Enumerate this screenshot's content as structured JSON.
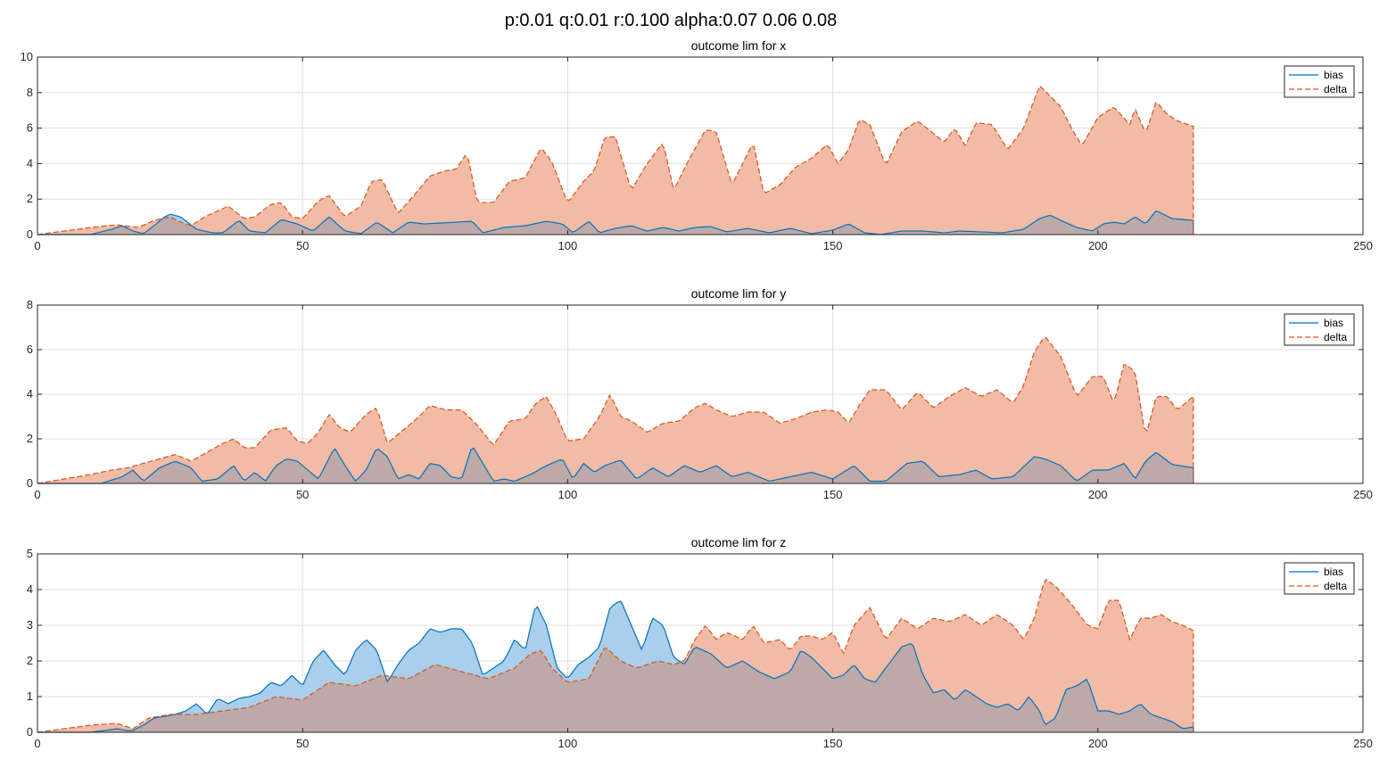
{
  "figure": {
    "suptitle": "p:0.01 q:0.01 r:0.100 alpha:0.07 0.06 0.08"
  },
  "colors": {
    "bias_line": "#0072BD",
    "bias_fill": "#A9CFEC",
    "delta_line": "#D95319",
    "delta_fill": "#F1BBA5",
    "overlap_fill": "#BEA9A9",
    "grid": "#DFDFDF",
    "axes": "#262626"
  },
  "chart_data": [
    {
      "type": "area",
      "title": "outcome lim for x",
      "xlabel": "",
      "ylabel": "",
      "xlim": [
        0,
        250
      ],
      "ylim": [
        0,
        10
      ],
      "xticks": [
        0,
        50,
        100,
        150,
        200,
        250
      ],
      "yticks": [
        0,
        2,
        4,
        6,
        8,
        10
      ],
      "grid": true,
      "legend_position": "top-right",
      "series": [
        {
          "name": "bias",
          "style": "solid",
          "x": [
            0,
            10,
            14,
            16,
            18,
            20,
            22,
            24,
            25,
            27,
            30,
            33,
            35,
            38,
            40,
            43,
            46,
            49,
            52,
            55,
            58,
            61,
            64,
            67,
            70,
            73,
            76,
            79,
            82,
            84,
            88,
            92,
            96,
            99,
            101,
            104,
            106,
            109,
            112,
            115,
            118,
            121,
            124,
            127,
            130,
            134,
            138,
            142,
            146,
            150,
            153,
            156,
            159,
            163,
            167,
            171,
            174,
            178,
            182,
            186,
            189,
            191,
            193,
            196,
            199,
            201,
            203,
            205,
            207,
            209,
            211,
            214,
            218
          ],
          "y": [
            0,
            0,
            0.3,
            0.5,
            0.2,
            0.05,
            0.5,
            1.0,
            1.15,
            1.0,
            0.3,
            0.1,
            0.1,
            0.8,
            0.2,
            0.1,
            0.85,
            0.6,
            0.2,
            1.0,
            0.2,
            0.05,
            0.7,
            0.1,
            0.7,
            0.6,
            0.65,
            0.7,
            0.75,
            0.1,
            0.4,
            0.5,
            0.75,
            0.6,
            0.1,
            0.75,
            0.1,
            0.35,
            0.5,
            0.2,
            0.4,
            0.2,
            0.4,
            0.45,
            0.15,
            0.35,
            0.1,
            0.35,
            0.05,
            0.25,
            0.6,
            0.1,
            0,
            0.2,
            0.2,
            0.1,
            0.2,
            0.15,
            0.1,
            0.3,
            0.9,
            1.1,
            0.8,
            0.4,
            0.2,
            0.6,
            0.7,
            0.6,
            1.0,
            0.6,
            1.35,
            0.9,
            0.8
          ]
        },
        {
          "name": "delta",
          "style": "dashed",
          "x": [
            0,
            5,
            10,
            15,
            19,
            22,
            25,
            27,
            29,
            31,
            33,
            36,
            39,
            41,
            44,
            46,
            48,
            50,
            53,
            55,
            58,
            61,
            63,
            65,
            68,
            71,
            74,
            77,
            79,
            81,
            83,
            86,
            89,
            92,
            95,
            97,
            100,
            103,
            105,
            107,
            109,
            112,
            115,
            118,
            120,
            123,
            126,
            128,
            131,
            133,
            135,
            137,
            140,
            143,
            146,
            149,
            151,
            153,
            155,
            157,
            160,
            163,
            166,
            169,
            171,
            173,
            175,
            177,
            180,
            183,
            186,
            189,
            191,
            193,
            195,
            197,
            200,
            203,
            206,
            207,
            209,
            211,
            213,
            215,
            218
          ],
          "y": [
            0,
            0.2,
            0.4,
            0.55,
            0.4,
            0.8,
            1.0,
            0.7,
            0.5,
            0.9,
            1.2,
            1.6,
            0.9,
            1.0,
            1.7,
            1.8,
            1.0,
            0.9,
            1.9,
            2.2,
            1.0,
            1.6,
            3.0,
            3.1,
            1.2,
            2.2,
            3.3,
            3.6,
            3.7,
            4.6,
            1.8,
            1.8,
            3.0,
            3.2,
            4.9,
            4.1,
            1.8,
            3.0,
            3.6,
            5.5,
            5.5,
            2.5,
            4.0,
            5.2,
            2.5,
            4.3,
            5.9,
            5.8,
            2.8,
            4.0,
            5.2,
            2.3,
            2.8,
            3.8,
            4.3,
            5.1,
            4.0,
            4.8,
            6.5,
            6.2,
            3.9,
            5.8,
            6.4,
            5.7,
            5.2,
            6.0,
            5.0,
            6.3,
            6.2,
            4.8,
            6.0,
            8.4,
            7.8,
            7.2,
            6.0,
            5.0,
            6.6,
            7.2,
            6.2,
            7.1,
            5.7,
            7.5,
            6.8,
            6.4,
            6.1
          ]
        }
      ]
    },
    {
      "type": "area",
      "title": "outcome lim for y",
      "xlabel": "",
      "ylabel": "",
      "xlim": [
        0,
        250
      ],
      "ylim": [
        0,
        8
      ],
      "xticks": [
        0,
        50,
        100,
        150,
        200,
        250
      ],
      "yticks": [
        0,
        2,
        4,
        6,
        8
      ],
      "grid": true,
      "legend_position": "top-right",
      "series": [
        {
          "name": "bias",
          "style": "solid",
          "x": [
            0,
            12,
            16,
            18,
            20,
            23,
            26,
            29,
            31,
            34,
            37,
            39,
            41,
            43,
            45,
            47,
            49,
            51,
            53,
            56,
            58,
            60,
            62,
            64,
            66,
            68,
            70,
            72,
            74,
            76,
            78,
            80,
            82,
            84,
            86,
            88,
            90,
            93,
            96,
            99,
            101,
            103,
            105,
            107,
            110,
            113,
            116,
            119,
            122,
            125,
            128,
            131,
            134,
            138,
            142,
            146,
            150,
            154,
            157,
            160,
            164,
            167,
            170,
            174,
            177,
            180,
            184,
            188,
            190,
            193,
            196,
            199,
            202,
            205,
            207,
            209,
            211,
            214,
            218
          ],
          "y": [
            0,
            0,
            0.3,
            0.6,
            0.1,
            0.7,
            1.0,
            0.7,
            0.1,
            0.2,
            0.8,
            0.1,
            0.5,
            0.1,
            0.8,
            1.1,
            1.0,
            0.6,
            0.2,
            1.6,
            0.8,
            0.1,
            0.6,
            1.6,
            1.2,
            0.2,
            0.4,
            0.2,
            0.9,
            0.8,
            0.3,
            0.2,
            1.7,
            0.9,
            0.1,
            0.2,
            0.1,
            0.4,
            0.8,
            1.1,
            0.2,
            0.9,
            0.5,
            0.8,
            1.05,
            0.2,
            0.7,
            0.3,
            0.8,
            0.5,
            0.8,
            0.3,
            0.5,
            0.1,
            0.3,
            0.5,
            0.2,
            0.8,
            0.1,
            0.1,
            0.9,
            1.0,
            0.3,
            0.4,
            0.6,
            0.2,
            0.3,
            1.2,
            1.1,
            0.8,
            0.1,
            0.6,
            0.6,
            0.9,
            0.2,
            1.0,
            1.4,
            0.85,
            0.7
          ]
        },
        {
          "name": "delta",
          "style": "dashed",
          "x": [
            0,
            5,
            10,
            14,
            17,
            20,
            23,
            26,
            29,
            32,
            35,
            37,
            39,
            41,
            44,
            47,
            49,
            51,
            53,
            55,
            57,
            59,
            62,
            64,
            66,
            69,
            72,
            74,
            77,
            80,
            83,
            86,
            89,
            92,
            94,
            96,
            98,
            100,
            103,
            106,
            108,
            110,
            112,
            115,
            118,
            121,
            124,
            126,
            128,
            131,
            134,
            137,
            140,
            143,
            146,
            149,
            151,
            153,
            155,
            157,
            160,
            163,
            166,
            169,
            172,
            175,
            178,
            181,
            184,
            186,
            188,
            190,
            193,
            196,
            199,
            201,
            203,
            205,
            207,
            209,
            211,
            213,
            215,
            218
          ],
          "y": [
            0,
            0.2,
            0.4,
            0.6,
            0.7,
            0.9,
            1.1,
            1.3,
            1.0,
            1.4,
            1.8,
            2.0,
            1.6,
            1.6,
            2.4,
            2.5,
            1.9,
            1.8,
            2.3,
            3.1,
            2.5,
            2.3,
            3.1,
            3.4,
            1.8,
            2.4,
            3.0,
            3.5,
            3.3,
            3.3,
            2.6,
            1.7,
            2.8,
            2.9,
            3.6,
            3.9,
            3.0,
            1.9,
            2.0,
            3.0,
            4.0,
            3.0,
            2.8,
            2.3,
            2.7,
            2.8,
            3.4,
            3.6,
            3.3,
            3.0,
            3.2,
            3.2,
            2.7,
            2.9,
            3.2,
            3.3,
            3.2,
            2.7,
            3.5,
            4.2,
            4.2,
            3.3,
            4.1,
            3.4,
            3.9,
            4.3,
            3.9,
            4.2,
            3.6,
            4.4,
            5.9,
            6.6,
            5.7,
            3.9,
            4.8,
            4.8,
            3.6,
            5.4,
            5.0,
            2.1,
            3.9,
            3.9,
            3.3,
            3.9
          ]
        }
      ]
    },
    {
      "type": "area",
      "title": "outcome lim for z",
      "xlabel": "",
      "ylabel": "",
      "xlim": [
        0,
        250
      ],
      "ylim": [
        0,
        5
      ],
      "xticks": [
        0,
        50,
        100,
        150,
        200,
        250
      ],
      "yticks": [
        0,
        1,
        2,
        3,
        4,
        5
      ],
      "grid": true,
      "legend_position": "top-right",
      "series": [
        {
          "name": "bias",
          "style": "solid",
          "x": [
            0,
            10,
            15,
            17,
            18,
            20,
            22,
            24,
            26,
            28,
            30,
            32,
            34,
            36,
            38,
            40,
            42,
            44,
            46,
            48,
            50,
            52,
            54,
            56,
            58,
            60,
            62,
            64,
            66,
            68,
            70,
            72,
            74,
            76,
            78,
            80,
            82,
            84,
            86,
            88,
            90,
            92,
            94,
            96,
            98,
            100,
            102,
            104,
            106,
            108,
            110,
            112,
            114,
            116,
            118,
            120,
            122,
            124,
            127,
            130,
            133,
            136,
            139,
            142,
            144,
            146,
            148,
            150,
            152,
            154,
            156,
            158,
            160,
            163,
            165,
            167,
            169,
            171,
            173,
            175,
            177,
            179,
            181,
            183,
            185,
            187,
            189,
            190,
            192,
            194,
            196,
            198,
            200,
            202,
            204,
            206,
            208,
            210,
            212,
            214,
            216,
            218
          ],
          "y": [
            0,
            0,
            0.1,
            0.05,
            0.05,
            0.2,
            0.4,
            0.45,
            0.5,
            0.6,
            0.8,
            0.5,
            0.95,
            0.8,
            0.95,
            1.0,
            1.1,
            1.4,
            1.3,
            1.6,
            1.3,
            2.0,
            2.3,
            1.9,
            1.6,
            2.3,
            2.6,
            2.3,
            1.4,
            1.9,
            2.3,
            2.5,
            2.9,
            2.8,
            2.9,
            2.9,
            2.5,
            1.6,
            1.8,
            2.0,
            2.6,
            2.3,
            3.6,
            3.0,
            1.8,
            1.5,
            1.9,
            2.1,
            2.4,
            3.5,
            3.7,
            3.0,
            2.3,
            3.2,
            3.0,
            2.1,
            1.9,
            2.4,
            2.2,
            1.8,
            2.0,
            1.7,
            1.5,
            1.7,
            2.3,
            2.1,
            1.8,
            1.5,
            1.6,
            1.9,
            1.5,
            1.4,
            1.8,
            2.4,
            2.5,
            1.6,
            1.1,
            1.2,
            0.9,
            1.2,
            1.0,
            0.8,
            0.7,
            0.8,
            0.6,
            1.0,
            0.6,
            0.2,
            0.4,
            1.2,
            1.3,
            1.5,
            0.6,
            0.6,
            0.5,
            0.6,
            0.8,
            0.5,
            0.4,
            0.3,
            0.1,
            0.15
          ]
        },
        {
          "name": "delta",
          "style": "dashed",
          "x": [
            0,
            5,
            10,
            15,
            18,
            21,
            25,
            30,
            35,
            40,
            45,
            50,
            55,
            60,
            65,
            70,
            75,
            80,
            85,
            90,
            93,
            95,
            97,
            100,
            104,
            107,
            110,
            113,
            117,
            120,
            122,
            124,
            126,
            128,
            130,
            133,
            135,
            137,
            140,
            142,
            144,
            146,
            148,
            150,
            152,
            154,
            157,
            160,
            163,
            166,
            169,
            172,
            175,
            178,
            181,
            184,
            186,
            188,
            190,
            192,
            195,
            198,
            200,
            202,
            204,
            206,
            208,
            210,
            212,
            214,
            216,
            218
          ],
          "y": [
            0,
            0.1,
            0.2,
            0.25,
            0.1,
            0.4,
            0.5,
            0.5,
            0.6,
            0.7,
            1.0,
            0.9,
            1.4,
            1.3,
            1.6,
            1.5,
            1.9,
            1.7,
            1.5,
            1.8,
            2.2,
            2.3,
            1.8,
            1.4,
            1.5,
            2.4,
            2.0,
            1.8,
            2.0,
            1.9,
            2.0,
            2.6,
            3.0,
            2.6,
            2.8,
            2.6,
            3.0,
            2.5,
            2.6,
            2.3,
            2.7,
            2.7,
            2.6,
            2.8,
            2.2,
            3.0,
            3.5,
            2.6,
            3.2,
            2.9,
            3.2,
            3.1,
            3.3,
            3.0,
            3.3,
            3.0,
            2.6,
            3.2,
            4.3,
            4.1,
            3.6,
            3.0,
            2.9,
            3.7,
            3.7,
            2.6,
            3.2,
            3.2,
            3.3,
            3.1,
            3.0,
            2.85
          ]
        }
      ]
    }
  ]
}
